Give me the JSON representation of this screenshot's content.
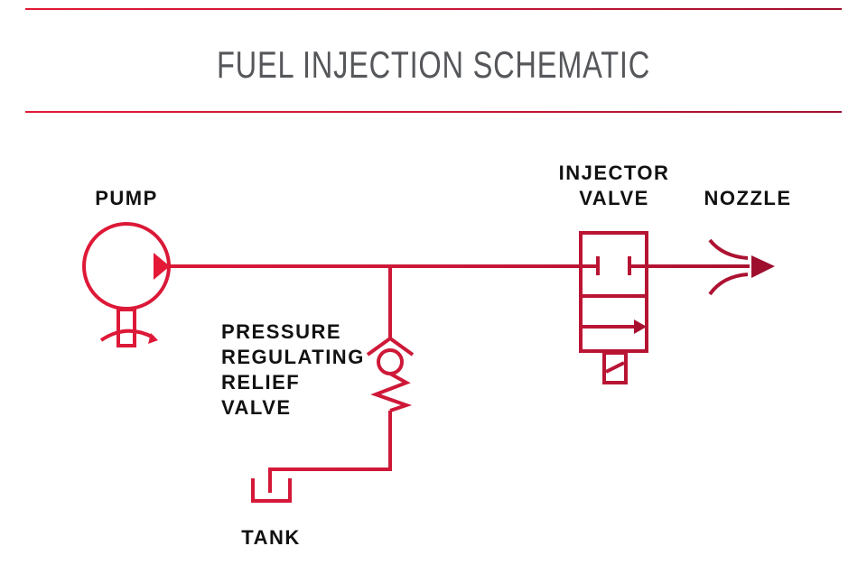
{
  "title": "FUEL INJECTION SCHEMATIC",
  "labels": {
    "pump": "PUMP",
    "injector": [
      "INJECTOR",
      "VALVE"
    ],
    "nozzle": "NOZZLE",
    "relief": [
      "PRESSURE",
      "REGULATING",
      "RELIEF",
      "VALVE"
    ],
    "tank": "TANK"
  },
  "colors": {
    "rule": "#d0203f",
    "line_start": "#e31937",
    "line_end": "#9e0f2e",
    "text": "#111111",
    "title": "#55575a"
  }
}
